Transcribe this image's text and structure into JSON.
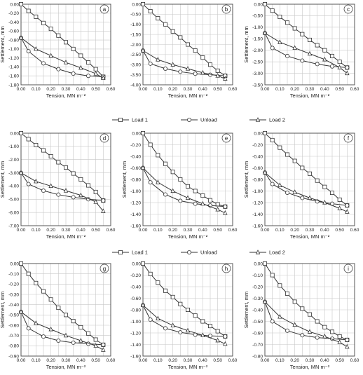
{
  "legend": [
    {
      "label": "Load 1",
      "marker": "square"
    },
    {
      "label": "Unload",
      "marker": "circle"
    },
    {
      "label": "Load 2",
      "marker": "triangle"
    }
  ],
  "chart_data": [
    {
      "type": "line",
      "letter": "a",
      "xlabel": "Tension, MN m⁻²",
      "ylabel": "Settlement, mm",
      "xlim": [
        0,
        0.6
      ],
      "ylim": [
        -1.8,
        0
      ],
      "yticks": [
        0,
        -0.2,
        -0.4,
        -0.6,
        -0.8,
        -1.0,
        -1.2,
        -1.4,
        -1.6,
        -1.8
      ],
      "series": [
        {
          "name": "Load 1",
          "x": [
            0,
            0.05,
            0.1,
            0.15,
            0.2,
            0.25,
            0.3,
            0.35,
            0.4,
            0.45,
            0.5,
            0.55
          ],
          "y": [
            0,
            -0.15,
            -0.28,
            -0.42,
            -0.55,
            -0.7,
            -0.85,
            -1.0,
            -1.15,
            -1.3,
            -1.45,
            -1.62
          ]
        },
        {
          "name": "Unload",
          "x": [
            0.55,
            0.45,
            0.35,
            0.25,
            0.15,
            0.05,
            0
          ],
          "y": [
            -1.62,
            -1.6,
            -1.55,
            -1.45,
            -1.32,
            -1.05,
            -0.75
          ]
        },
        {
          "name": "Load 2",
          "x": [
            0,
            0.1,
            0.2,
            0.3,
            0.4,
            0.5,
            0.55
          ],
          "y": [
            -0.75,
            -1.0,
            -1.15,
            -1.3,
            -1.42,
            -1.55,
            -1.65
          ]
        }
      ]
    },
    {
      "type": "line",
      "letter": "b",
      "xlabel": "Tension, MN m⁻²",
      "ylabel": "",
      "xlim": [
        0,
        0.6
      ],
      "ylim": [
        -4.0,
        0
      ],
      "yticks": [
        0,
        -0.5,
        -1.0,
        -1.5,
        -2.0,
        -2.5,
        -3.0,
        -3.5,
        -4.0
      ],
      "series": [
        {
          "name": "Load 1",
          "x": [
            0,
            0.05,
            0.1,
            0.15,
            0.2,
            0.25,
            0.3,
            0.35,
            0.4,
            0.45,
            0.5,
            0.55
          ],
          "y": [
            0,
            -0.35,
            -0.7,
            -1.0,
            -1.35,
            -1.65,
            -2.0,
            -2.3,
            -2.65,
            -3.0,
            -3.3,
            -3.55
          ]
        },
        {
          "name": "Unload",
          "x": [
            0.55,
            0.45,
            0.35,
            0.25,
            0.15,
            0.05,
            0
          ],
          "y": [
            -3.55,
            -3.5,
            -3.45,
            -3.35,
            -3.2,
            -2.95,
            -2.3
          ]
        },
        {
          "name": "Load 2",
          "x": [
            0,
            0.1,
            0.2,
            0.3,
            0.4,
            0.5,
            0.55
          ],
          "y": [
            -2.3,
            -2.75,
            -3.0,
            -3.2,
            -3.4,
            -3.55,
            -3.7
          ]
        }
      ]
    },
    {
      "type": "line",
      "letter": "c",
      "xlabel": "Tension, MN m⁻²",
      "ylabel": "Settlement, mm",
      "xlim": [
        0,
        0.6
      ],
      "ylim": [
        -3.5,
        0
      ],
      "yticks": [
        0,
        -0.5,
        -1.0,
        -1.5,
        -2.0,
        -2.5,
        -3.0,
        -3.5
      ],
      "series": [
        {
          "name": "Load 1",
          "x": [
            0,
            0.05,
            0.1,
            0.15,
            0.2,
            0.25,
            0.3,
            0.35,
            0.4,
            0.45,
            0.5,
            0.55
          ],
          "y": [
            0,
            -0.28,
            -0.55,
            -0.8,
            -1.05,
            -1.3,
            -1.55,
            -1.78,
            -2.0,
            -2.25,
            -2.5,
            -2.75
          ]
        },
        {
          "name": "Unload",
          "x": [
            0.55,
            0.45,
            0.35,
            0.25,
            0.15,
            0.05,
            0
          ],
          "y": [
            -2.75,
            -2.7,
            -2.6,
            -2.45,
            -2.25,
            -1.9,
            -1.25
          ]
        },
        {
          "name": "Load 2",
          "x": [
            0,
            0.1,
            0.2,
            0.3,
            0.4,
            0.5,
            0.55
          ],
          "y": [
            -1.25,
            -1.65,
            -1.9,
            -2.15,
            -2.4,
            -2.75,
            -3.0
          ]
        }
      ]
    },
    {
      "type": "line",
      "letter": "d",
      "xlabel": "Tension, MN m⁻²",
      "ylabel": "Settlement, mm",
      "xlim": [
        0,
        0.6
      ],
      "ylim": [
        -7.0,
        0
      ],
      "yticks": [
        0,
        -1.0,
        -2.0,
        -3.0,
        -4.0,
        -5.0,
        -6.0,
        -7.0
      ],
      "series": [
        {
          "name": "Load 1",
          "x": [
            0,
            0.05,
            0.1,
            0.15,
            0.2,
            0.25,
            0.3,
            0.35,
            0.4,
            0.45,
            0.5,
            0.55
          ],
          "y": [
            0,
            -0.45,
            -0.9,
            -1.3,
            -1.75,
            -2.2,
            -2.6,
            -3.05,
            -3.5,
            -3.95,
            -4.45,
            -5.1
          ]
        },
        {
          "name": "Unload",
          "x": [
            0.55,
            0.45,
            0.35,
            0.25,
            0.15,
            0.05,
            0
          ],
          "y": [
            -5.1,
            -5.0,
            -4.85,
            -4.65,
            -4.35,
            -3.85,
            -3.0
          ]
        },
        {
          "name": "Load 2",
          "x": [
            0,
            0.1,
            0.2,
            0.3,
            0.4,
            0.5,
            0.55
          ],
          "y": [
            -3.0,
            -3.65,
            -4.0,
            -4.35,
            -4.7,
            -5.2,
            -5.9
          ]
        }
      ]
    },
    {
      "type": "line",
      "letter": "e",
      "xlabel": "Tension, MN m⁻²",
      "ylabel": "Settlement, mm",
      "xlim": [
        0,
        0.6
      ],
      "ylim": [
        -1.6,
        0
      ],
      "yticks": [
        0,
        -0.2,
        -0.4,
        -0.6,
        -0.8,
        -1.0,
        -1.2,
        -1.4,
        -1.6
      ],
      "series": [
        {
          "name": "Load 1",
          "x": [
            0,
            0.05,
            0.1,
            0.15,
            0.2,
            0.25,
            0.3,
            0.35,
            0.4,
            0.45,
            0.5,
            0.55
          ],
          "y": [
            0,
            -0.2,
            -0.38,
            -0.53,
            -0.67,
            -0.8,
            -0.92,
            -1.0,
            -1.08,
            -1.16,
            -1.23,
            -1.27
          ]
        },
        {
          "name": "Unload",
          "x": [
            0.55,
            0.45,
            0.35,
            0.25,
            0.15,
            0.05,
            0
          ],
          "y": [
            -1.27,
            -1.25,
            -1.22,
            -1.17,
            -1.06,
            -0.85,
            -0.6
          ]
        },
        {
          "name": "Load 2",
          "x": [
            0,
            0.1,
            0.2,
            0.3,
            0.4,
            0.5,
            0.55
          ],
          "y": [
            -0.6,
            -0.85,
            -1.0,
            -1.12,
            -1.22,
            -1.32,
            -1.38
          ]
        }
      ]
    },
    {
      "type": "line",
      "letter": "f",
      "xlabel": "Tension, MN m⁻²",
      "ylabel": "Settlement, mm",
      "xlim": [
        0,
        0.6
      ],
      "ylim": [
        -1.6,
        0
      ],
      "yticks": [
        0,
        -0.2,
        -0.4,
        -0.6,
        -0.8,
        -1.0,
        -1.2,
        -1.4,
        -1.6
      ],
      "series": [
        {
          "name": "Load 1",
          "x": [
            0,
            0.05,
            0.1,
            0.15,
            0.2,
            0.25,
            0.3,
            0.35,
            0.4,
            0.45,
            0.5,
            0.55
          ],
          "y": [
            0,
            -0.12,
            -0.25,
            -0.37,
            -0.48,
            -0.6,
            -0.7,
            -0.82,
            -0.93,
            -1.03,
            -1.15,
            -1.25
          ]
        },
        {
          "name": "Unload",
          "x": [
            0.55,
            0.45,
            0.35,
            0.25,
            0.15,
            0.05,
            0
          ],
          "y": [
            -1.25,
            -1.22,
            -1.18,
            -1.12,
            -1.03,
            -0.88,
            -0.68
          ]
        },
        {
          "name": "Load 2",
          "x": [
            0,
            0.1,
            0.2,
            0.3,
            0.4,
            0.5,
            0.55
          ],
          "y": [
            -0.68,
            -0.9,
            -1.02,
            -1.12,
            -1.2,
            -1.3,
            -1.36
          ]
        }
      ]
    },
    {
      "type": "line",
      "letter": "g",
      "xlabel": "Tension, MN m⁻²",
      "ylabel": "Settlement, mm",
      "xlim": [
        0,
        0.6
      ],
      "ylim": [
        -0.9,
        0
      ],
      "yticks": [
        0,
        -0.1,
        -0.2,
        -0.3,
        -0.4,
        -0.5,
        -0.6,
        -0.7,
        -0.8,
        -0.9
      ],
      "series": [
        {
          "name": "Load 1",
          "x": [
            0,
            0.05,
            0.1,
            0.15,
            0.2,
            0.25,
            0.3,
            0.35,
            0.4,
            0.45,
            0.5,
            0.55
          ],
          "y": [
            0,
            -0.1,
            -0.19,
            -0.27,
            -0.35,
            -0.43,
            -0.5,
            -0.56,
            -0.62,
            -0.68,
            -0.74,
            -0.79
          ]
        },
        {
          "name": "Unload",
          "x": [
            0.55,
            0.45,
            0.35,
            0.25,
            0.15,
            0.05,
            0
          ],
          "y": [
            -0.79,
            -0.78,
            -0.77,
            -0.75,
            -0.71,
            -0.63,
            -0.47
          ]
        },
        {
          "name": "Load 2",
          "x": [
            0,
            0.1,
            0.2,
            0.3,
            0.4,
            0.5,
            0.55
          ],
          "y": [
            -0.47,
            -0.58,
            -0.64,
            -0.7,
            -0.75,
            -0.8,
            -0.84
          ]
        }
      ]
    },
    {
      "type": "line",
      "letter": "h",
      "xlabel": "Tension, MN m⁻²",
      "ylabel": "",
      "xlim": [
        0,
        0.6
      ],
      "ylim": [
        -1.6,
        0
      ],
      "yticks": [
        0,
        -0.2,
        -0.4,
        -0.6,
        -0.8,
        -1.0,
        -1.2,
        -1.4,
        -1.6
      ],
      "series": [
        {
          "name": "Load 1",
          "x": [
            0,
            0.05,
            0.1,
            0.15,
            0.2,
            0.25,
            0.3,
            0.35,
            0.4,
            0.45,
            0.5,
            0.55
          ],
          "y": [
            0,
            -0.18,
            -0.33,
            -0.47,
            -0.58,
            -0.7,
            -0.8,
            -0.9,
            -1.0,
            -1.08,
            -1.17,
            -1.26
          ]
        },
        {
          "name": "Unload",
          "x": [
            0.55,
            0.45,
            0.35,
            0.25,
            0.15,
            0.05,
            0
          ],
          "y": [
            -1.26,
            -1.25,
            -1.23,
            -1.19,
            -1.12,
            -0.97,
            -0.72
          ]
        },
        {
          "name": "Load 2",
          "x": [
            0,
            0.1,
            0.2,
            0.3,
            0.4,
            0.5,
            0.55
          ],
          "y": [
            -0.72,
            -0.95,
            -1.07,
            -1.16,
            -1.24,
            -1.33,
            -1.39
          ]
        }
      ]
    },
    {
      "type": "line",
      "letter": "i",
      "xlabel": "Tension, MN m⁻²",
      "ylabel": "Settlement, mm",
      "xlim": [
        0,
        0.6
      ],
      "ylim": [
        -0.8,
        0
      ],
      "yticks": [
        0,
        -0.1,
        -0.2,
        -0.3,
        -0.4,
        -0.5,
        -0.6,
        -0.7,
        -0.8
      ],
      "series": [
        {
          "name": "Load 1",
          "x": [
            0,
            0.05,
            0.1,
            0.15,
            0.2,
            0.25,
            0.3,
            0.35,
            0.4,
            0.45,
            0.5,
            0.55
          ],
          "y": [
            0,
            -0.1,
            -0.19,
            -0.26,
            -0.33,
            -0.39,
            -0.44,
            -0.5,
            -0.55,
            -0.59,
            -0.63,
            -0.66
          ]
        },
        {
          "name": "Unload",
          "x": [
            0.55,
            0.45,
            0.35,
            0.25,
            0.15,
            0.05,
            0
          ],
          "y": [
            -0.66,
            -0.65,
            -0.64,
            -0.62,
            -0.58,
            -0.5,
            -0.33
          ]
        },
        {
          "name": "Load 2",
          "x": [
            0,
            0.1,
            0.2,
            0.3,
            0.4,
            0.5,
            0.55
          ],
          "y": [
            -0.33,
            -0.46,
            -0.53,
            -0.59,
            -0.63,
            -0.68,
            -0.72
          ]
        }
      ]
    }
  ]
}
